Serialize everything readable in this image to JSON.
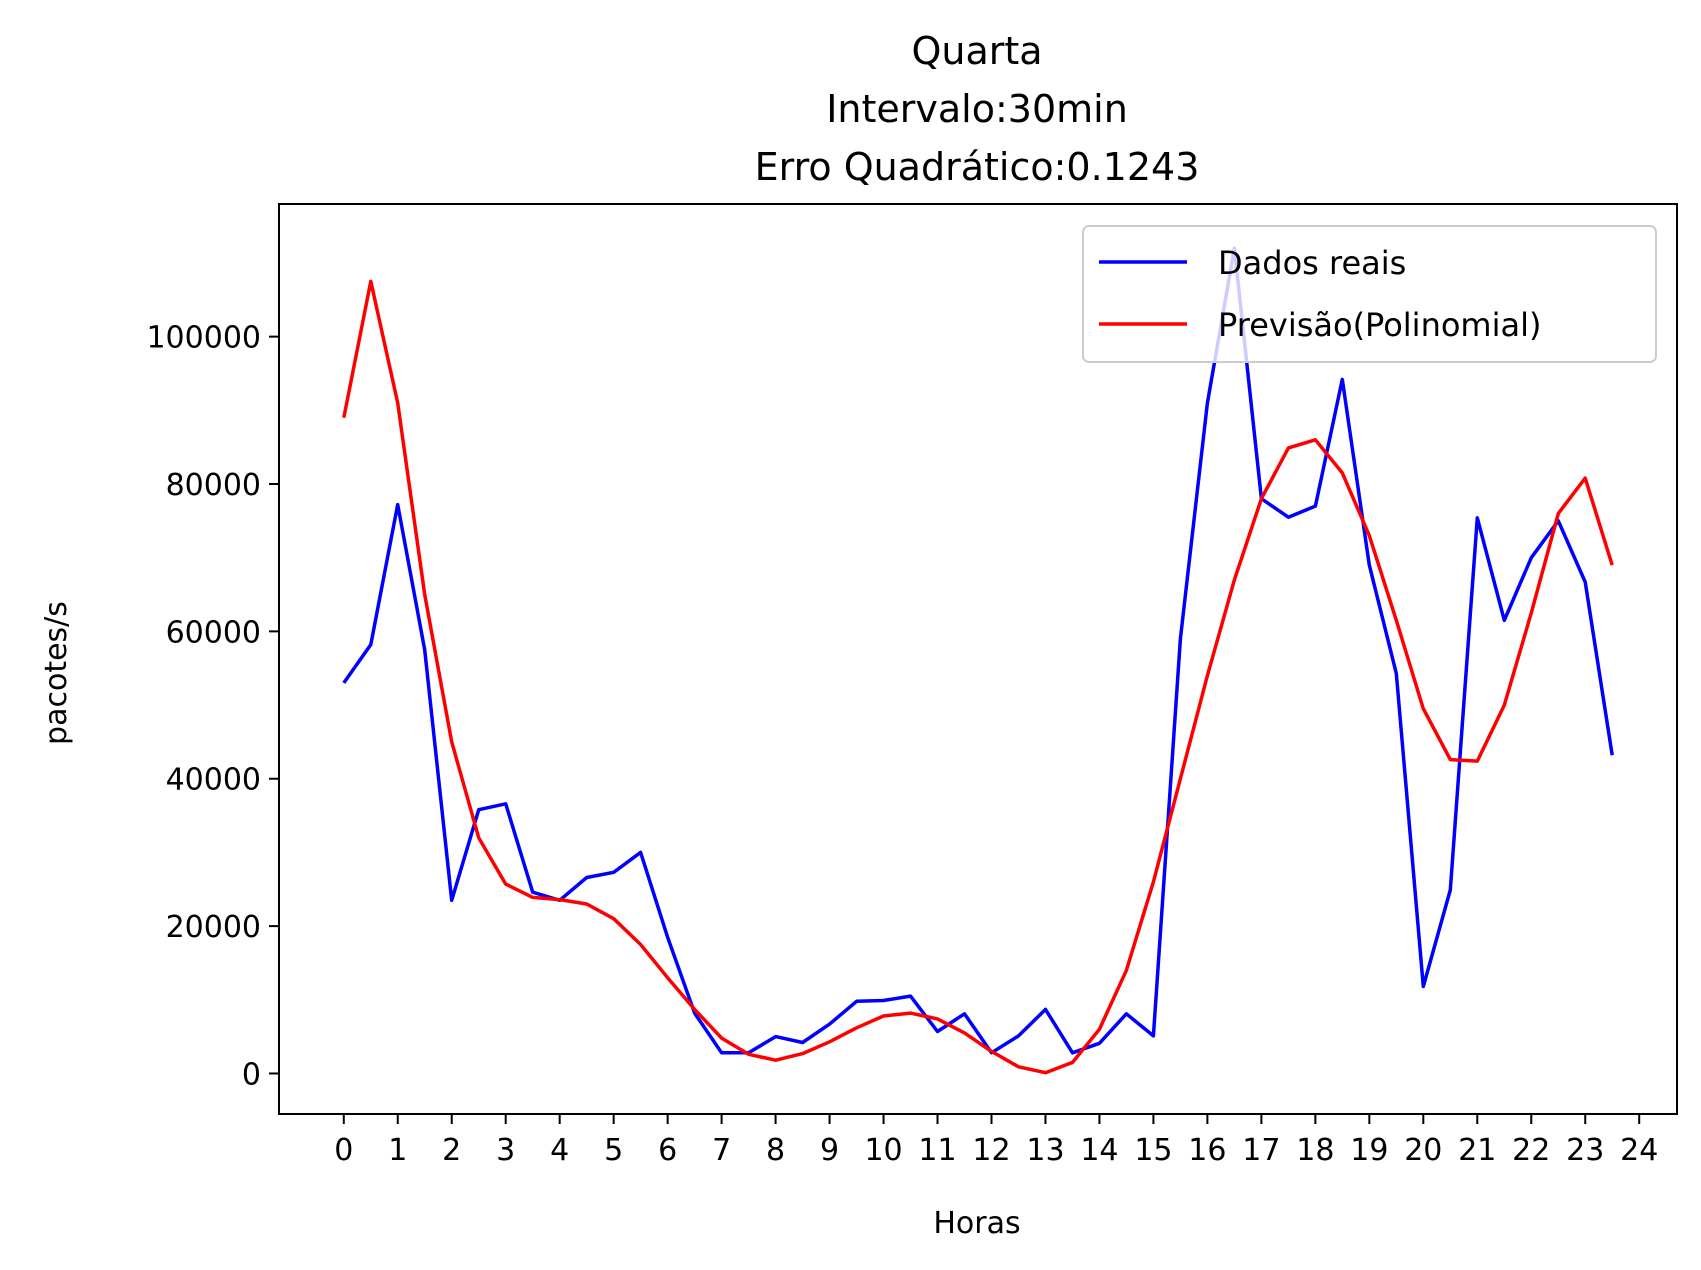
{
  "chart_data": {
    "type": "line",
    "title_lines": [
      "Quarta",
      "Intervalo:30min",
      "Erro Quadrático:0.1243"
    ],
    "xlabel": "Horas",
    "ylabel": "pacotes/s",
    "xlim": [
      -1.2,
      24.7
    ],
    "ylim": [
      -5500,
      118000
    ],
    "x_ticks": [
      0,
      1,
      2,
      3,
      4,
      5,
      6,
      7,
      8,
      9,
      10,
      11,
      12,
      13,
      14,
      15,
      16,
      17,
      18,
      19,
      20,
      21,
      22,
      23,
      24
    ],
    "y_ticks": [
      0,
      20000,
      40000,
      60000,
      80000,
      100000
    ],
    "legend_position": "top-right",
    "x": [
      0,
      0.5,
      1,
      1.5,
      2,
      2.5,
      3,
      3.5,
      4,
      4.5,
      5,
      5.5,
      6,
      6.5,
      7,
      7.5,
      8,
      8.5,
      9,
      9.5,
      10,
      10.5,
      11,
      11.5,
      12,
      12.5,
      13,
      13.5,
      14,
      14.5,
      15,
      15.5,
      16,
      16.5,
      17,
      17.5,
      18,
      18.5,
      19,
      19.5,
      20,
      20.5,
      21,
      21.5,
      22,
      22.5,
      23,
      23.5
    ],
    "series": [
      {
        "name": "Dados reais",
        "color": "#0000ff",
        "values": [
          53000,
          58200,
          77200,
          57500,
          23500,
          35800,
          36600,
          24600,
          23500,
          26600,
          27300,
          30000,
          18500,
          8200,
          2800,
          2800,
          5000,
          4200,
          6700,
          9800,
          9900,
          10500,
          5700,
          8100,
          2800,
          5100,
          8700,
          2800,
          4100,
          8100,
          5100,
          59000,
          91000,
          112000,
          78000,
          75500,
          77000,
          94200,
          69000,
          54300,
          11800,
          24900,
          75400,
          61500,
          70000,
          75000,
          66700,
          43200
        ]
      },
      {
        "name": "Previsão(Polinomial)",
        "color": "#ff0000",
        "values": [
          89000,
          107500,
          91000,
          65000,
          45000,
          32000,
          25700,
          23900,
          23600,
          23000,
          21000,
          17500,
          13000,
          8700,
          4800,
          2600,
          1800,
          2700,
          4300,
          6200,
          7800,
          8200,
          7400,
          5500,
          3000,
          900,
          100,
          1500,
          6000,
          14000,
          26000,
          40000,
          54000,
          67000,
          78000,
          84900,
          86000,
          81500,
          73000,
          61500,
          49500,
          42600,
          42400,
          50000,
          62500,
          76000,
          80800,
          69000
        ]
      }
    ]
  }
}
